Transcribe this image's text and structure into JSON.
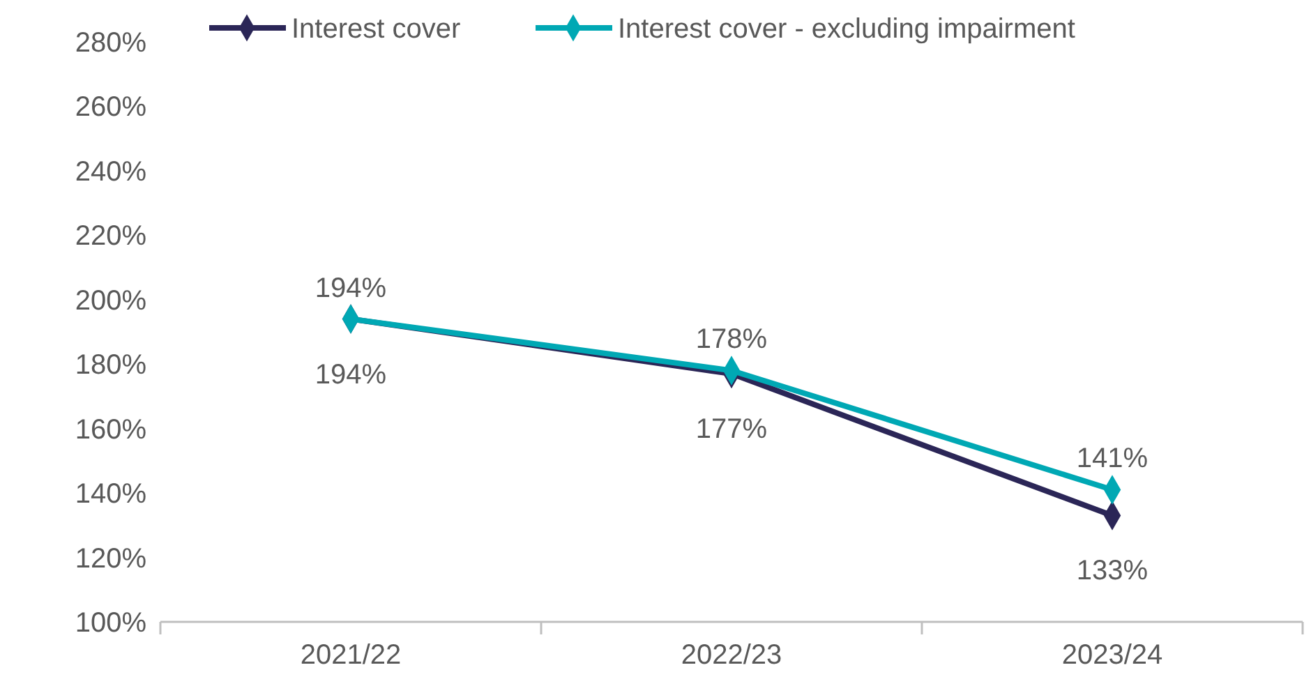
{
  "chart_data": {
    "type": "line",
    "categories": [
      "2021/22",
      "2022/23",
      "2023/24"
    ],
    "series": [
      {
        "name": "Interest cover",
        "color": "#2b2657",
        "values": [
          194,
          177,
          133
        ],
        "value_labels": [
          "194%",
          "177%",
          "133%"
        ]
      },
      {
        "name": "Interest cover - excluding impairment",
        "color": "#00a8b4",
        "values": [
          194,
          178,
          141
        ],
        "value_labels": [
          "194%",
          "178%",
          "141%"
        ]
      }
    ],
    "ylim": [
      100,
      280
    ],
    "yticks": [
      {
        "value": 100,
        "label": "100%"
      },
      {
        "value": 120,
        "label": "120%"
      },
      {
        "value": 140,
        "label": "140%"
      },
      {
        "value": 160,
        "label": "160%"
      },
      {
        "value": 180,
        "label": "180%"
      },
      {
        "value": 200,
        "label": "200%"
      },
      {
        "value": 220,
        "label": "220%"
      },
      {
        "value": 240,
        "label": "240%"
      },
      {
        "value": 260,
        "label": "260%"
      },
      {
        "value": 280,
        "label": "280%"
      }
    ],
    "grid": false,
    "legend": "top",
    "marker": "diamond",
    "line_style": "solid"
  }
}
